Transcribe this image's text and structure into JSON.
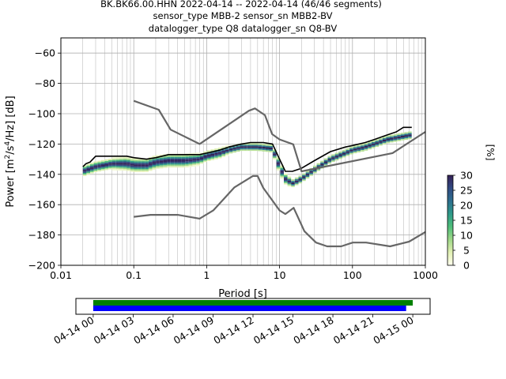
{
  "title_lines": [
    "BK.BK66.00.HHN   2022-04-14 -- 2022-04-14  (46/46 segments)",
    "sensor_type MBB-2 sensor_sn MBB2-BV",
    "datalogger_type Q8 datalogger_sn Q8-BV"
  ],
  "chart_data": {
    "type": "heatmap",
    "xlabel": "Period [s]",
    "ylabel": "Power [m²/s⁴/Hz] [dB]",
    "x_scale": "log",
    "xlim": [
      0.01,
      1000
    ],
    "ylim": [
      -200,
      -50
    ],
    "x_ticks": [
      0.01,
      0.1,
      1,
      10,
      100,
      1000
    ],
    "x_tick_labels": [
      "0.01",
      "0.1",
      "1",
      "10",
      "100",
      "1000"
    ],
    "y_ticks": [
      -200,
      -180,
      -160,
      -140,
      -120,
      -100,
      -80,
      -60
    ],
    "y_tick_labels": [
      "−200",
      "−180",
      "−160",
      "−140",
      "−120",
      "−100",
      "−80",
      "−60"
    ],
    "grid": true,
    "colorbar": {
      "label": "[%]",
      "range": [
        0,
        30
      ],
      "ticks": [
        0,
        5,
        10,
        15,
        20,
        25,
        30
      ],
      "colormap": [
        "#ffffee",
        "#e2f0b4",
        "#9fd888",
        "#4fbe7a",
        "#2f9a8a",
        "#2d6f8e",
        "#304a82",
        "#352056"
      ]
    },
    "series": [
      {
        "role": "mode",
        "color": "#000000",
        "x": [
          0.02,
          0.022,
          0.025,
          0.03,
          0.04,
          0.06,
          0.08,
          0.1,
          0.15,
          0.2,
          0.3,
          0.5,
          0.8,
          1,
          1.5,
          2,
          3,
          4,
          5,
          6,
          8,
          10,
          12,
          15,
          20,
          30,
          50,
          80,
          100,
          150,
          200,
          300,
          400,
          500,
          650
        ],
        "y": [
          -135,
          -133,
          -132,
          -128,
          -128,
          -128,
          -128,
          -129,
          -130,
          -129,
          -127,
          -127,
          -127,
          -126,
          -124,
          -122,
          -120,
          -119,
          -119,
          -119,
          -120,
          -130,
          -138,
          -138,
          -136,
          -131,
          -125,
          -122,
          -121,
          -119,
          -117,
          -114,
          -112,
          -109,
          -109
        ]
      },
      {
        "role": "new-high-noise-model",
        "color": "#666666",
        "x": [
          0.1,
          0.22,
          0.32,
          0.8,
          3.8,
          4.6,
          6.3,
          7.9,
          10,
          15.4,
          20,
          354.8,
          1000
        ],
        "y": [
          -91.5,
          -97.4,
          -110.5,
          -120,
          -98,
          -96.5,
          -101,
          -113.5,
          -117,
          -120.2,
          -138,
          -126,
          -112
        ]
      },
      {
        "role": "new-low-noise-model",
        "color": "#666666",
        "x": [
          0.1,
          0.17,
          0.4,
          0.8,
          1.24,
          2.4,
          4.3,
          5,
          6,
          10,
          12,
          15.6,
          21.9,
          31.6,
          45,
          70,
          101,
          154,
          328,
          600,
          1000
        ],
        "y": [
          -168,
          -166.7,
          -166.7,
          -169.2,
          -163.7,
          -148.6,
          -141.1,
          -141.1,
          -149,
          -163.8,
          -166.2,
          -162.1,
          -177.5,
          -185,
          -187.5,
          -187.5,
          -185,
          -185,
          -187.5,
          -184.4,
          -178
        ]
      }
    ],
    "density_bands": [
      {
        "x": [
          0.02,
          0.03,
          0.05,
          0.08,
          0.1,
          0.15,
          0.2,
          0.3,
          0.5,
          0.8,
          1,
          1.5,
          2,
          3,
          5,
          8,
          10,
          12,
          15,
          20,
          30,
          50,
          80,
          100,
          150,
          200,
          300,
          500,
          650
        ],
        "center": [
          -138,
          -135,
          -133,
          -133,
          -134,
          -134,
          -132,
          -131,
          -131,
          -130,
          -128,
          -126,
          -124,
          -122,
          -122,
          -123,
          -135,
          -143,
          -146,
          -143,
          -137,
          -130,
          -126,
          -124,
          -122,
          -120,
          -117,
          -115,
          -114
        ],
        "spread": [
          4,
          4,
          4,
          5,
          5,
          5,
          5,
          5,
          5,
          4,
          4,
          4,
          3,
          3,
          3,
          3,
          5,
          4,
          3,
          3,
          3,
          3,
          3,
          3,
          3,
          3,
          3,
          3,
          3
        ]
      }
    ]
  },
  "coverage": {
    "x_tick_labels": [
      "04-14 00",
      "04-14 03",
      "04-14 06",
      "04-14 09",
      "04-14 12",
      "04-14 15",
      "04-14 18",
      "04-14 21",
      "04-15 00"
    ],
    "hours_range": [
      -1.3,
      25.3
    ],
    "bars": [
      {
        "color": "#008000",
        "start_hour": 0,
        "end_hour": 24.0
      },
      {
        "color": "#0000ff",
        "start_hour": 0,
        "end_hour": 23.5
      }
    ]
  }
}
